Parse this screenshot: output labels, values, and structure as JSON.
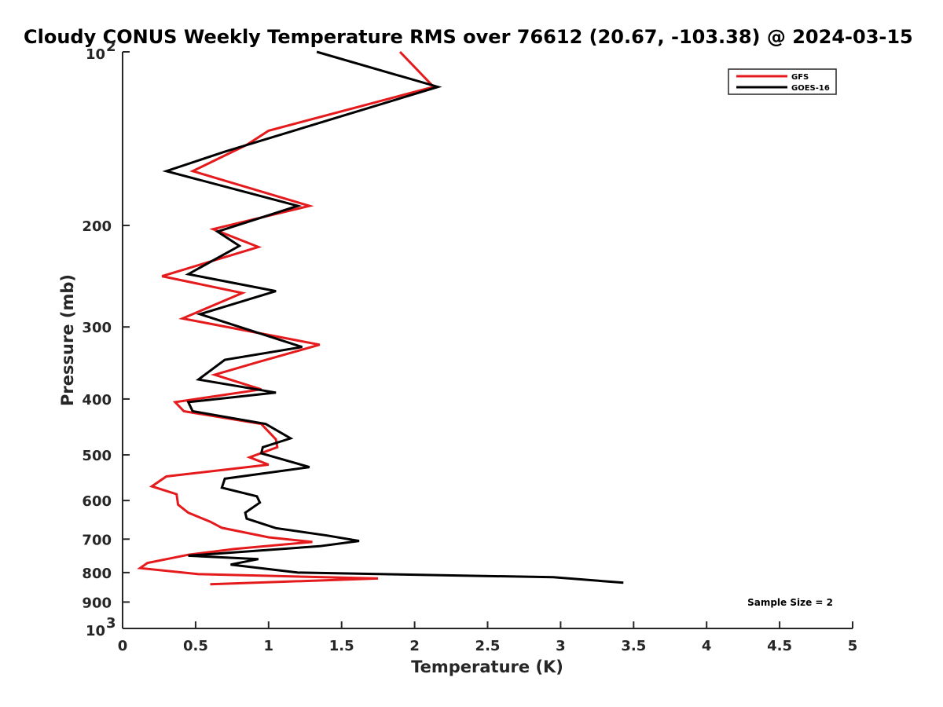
{
  "chart_data": {
    "type": "line",
    "title": "Cloudy CONUS Weekly Temperature RMS over 76612 (20.67, -103.38) @ 2024-03-15",
    "xlabel": "Temperature (K)",
    "ylabel": "Pressure (mb)",
    "xlim": [
      0,
      5
    ],
    "ylim": [
      100,
      1000
    ],
    "yscale": "log",
    "y_reversed": true,
    "xticks": [
      0,
      0.5,
      1,
      1.5,
      2,
      2.5,
      3,
      3.5,
      4,
      4.5,
      5
    ],
    "xtick_labels": [
      "0",
      "0.5",
      "1",
      "1.5",
      "2",
      "2.5",
      "3",
      "3.5",
      "4",
      "4.5",
      "5"
    ],
    "yticks": [
      {
        "value": 100,
        "base": "10",
        "exp": "2"
      },
      {
        "value": 200,
        "label": "200"
      },
      {
        "value": 300,
        "label": "300"
      },
      {
        "value": 400,
        "label": "400"
      },
      {
        "value": 500,
        "label": "500"
      },
      {
        "value": 600,
        "label": "600"
      },
      {
        "value": 700,
        "label": "700"
      },
      {
        "value": 800,
        "label": "800"
      },
      {
        "value": 900,
        "label": "900"
      },
      {
        "value": 1000,
        "base": "10",
        "exp": "3"
      }
    ],
    "legend_position": "top-right",
    "grid": false,
    "annotation": "Sample Size = 2",
    "series": [
      {
        "name": "GFS",
        "color": "#e41a1c",
        "points": [
          [
            1.9,
            100
          ],
          [
            2.13,
            115
          ],
          [
            1.0,
            137
          ],
          [
            0.85,
            145
          ],
          [
            0.48,
            161
          ],
          [
            1.28,
            185
          ],
          [
            0.62,
            203
          ],
          [
            0.93,
            218
          ],
          [
            0.27,
            245
          ],
          [
            0.82,
            262
          ],
          [
            0.41,
            290
          ],
          [
            1.35,
            322
          ],
          [
            0.93,
            345
          ],
          [
            0.63,
            363
          ],
          [
            0.95,
            385
          ],
          [
            0.36,
            405
          ],
          [
            0.42,
            420
          ],
          [
            0.95,
            442
          ],
          [
            1.05,
            470
          ],
          [
            1.06,
            485
          ],
          [
            0.87,
            505
          ],
          [
            1.0,
            520
          ],
          [
            0.3,
            545
          ],
          [
            0.2,
            567
          ],
          [
            0.37,
            585
          ],
          [
            0.38,
            610
          ],
          [
            0.45,
            630
          ],
          [
            0.6,
            653
          ],
          [
            0.68,
            669
          ],
          [
            1.0,
            695
          ],
          [
            1.3,
            708
          ],
          [
            0.77,
            728
          ],
          [
            0.45,
            745
          ],
          [
            0.17,
            770
          ],
          [
            0.12,
            786
          ],
          [
            0.52,
            805
          ],
          [
            1.75,
            819
          ],
          [
            0.6,
            838
          ]
        ]
      },
      {
        "name": "GOES-16",
        "color": "#000000",
        "points": [
          [
            1.33,
            100
          ],
          [
            2.16,
            115
          ],
          [
            0.7,
            149
          ],
          [
            0.3,
            161
          ],
          [
            1.2,
            185
          ],
          [
            0.65,
            205
          ],
          [
            0.8,
            217
          ],
          [
            0.45,
            243
          ],
          [
            1.05,
            260
          ],
          [
            0.53,
            285
          ],
          [
            1.23,
            325
          ],
          [
            0.7,
            342
          ],
          [
            0.52,
            370
          ],
          [
            1.05,
            390
          ],
          [
            0.45,
            405
          ],
          [
            0.48,
            420
          ],
          [
            0.98,
            442
          ],
          [
            1.15,
            468
          ],
          [
            0.96,
            485
          ],
          [
            0.95,
            497
          ],
          [
            1.28,
            525
          ],
          [
            0.7,
            550
          ],
          [
            0.68,
            570
          ],
          [
            0.92,
            590
          ],
          [
            0.94,
            605
          ],
          [
            0.84,
            630
          ],
          [
            0.85,
            645
          ],
          [
            1.05,
            670
          ],
          [
            1.4,
            690
          ],
          [
            1.62,
            705
          ],
          [
            1.35,
            720
          ],
          [
            0.45,
            748
          ],
          [
            0.93,
            758
          ],
          [
            0.74,
            775
          ],
          [
            1.2,
            800
          ],
          [
            2.95,
            815
          ],
          [
            3.43,
            833
          ]
        ]
      }
    ]
  }
}
